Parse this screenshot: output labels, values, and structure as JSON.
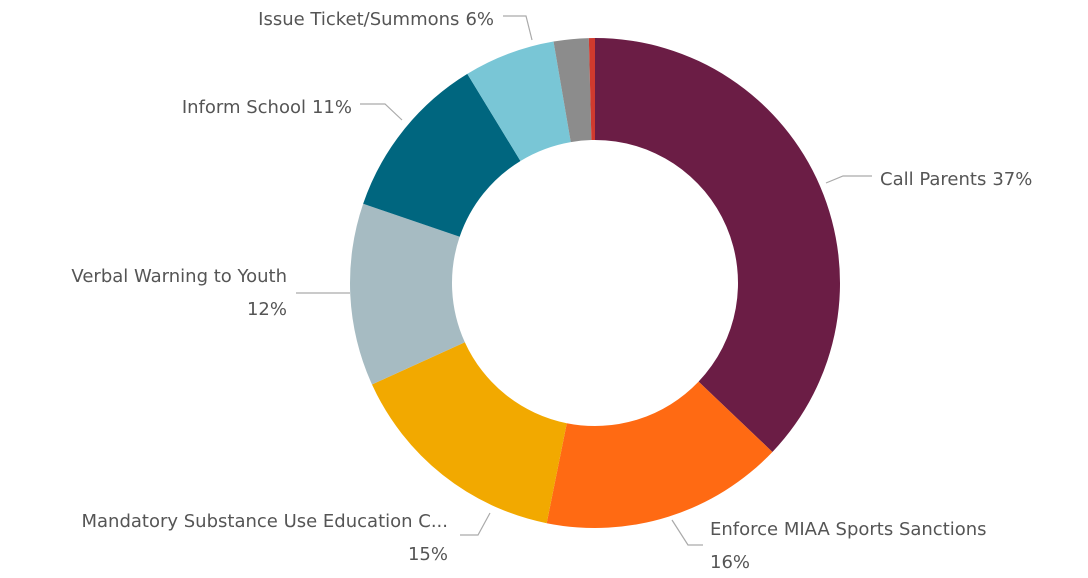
{
  "chart_data": {
    "type": "pie",
    "categories": [
      "Call Parents",
      "Enforce MIAA Sports Sanctions",
      "Mandatory Substance Use Education C...",
      "Verbal Warning to Youth",
      "Inform School",
      "Issue Ticket/Summons",
      null,
      null
    ],
    "values": [
      37,
      16,
      15,
      12,
      11,
      6,
      2.3,
      0.4
    ],
    "value_labels": [
      "37%",
      "16%",
      "15%",
      "12%",
      "11%",
      "6%",
      null,
      null
    ],
    "colors": [
      "#6b1d45",
      "#ff6a13",
      "#f2a900",
      "#a6bbc2",
      "#00667f",
      "#79c6d6",
      "#8c8c8c",
      "#d03a2e"
    ],
    "donut": true
  }
}
